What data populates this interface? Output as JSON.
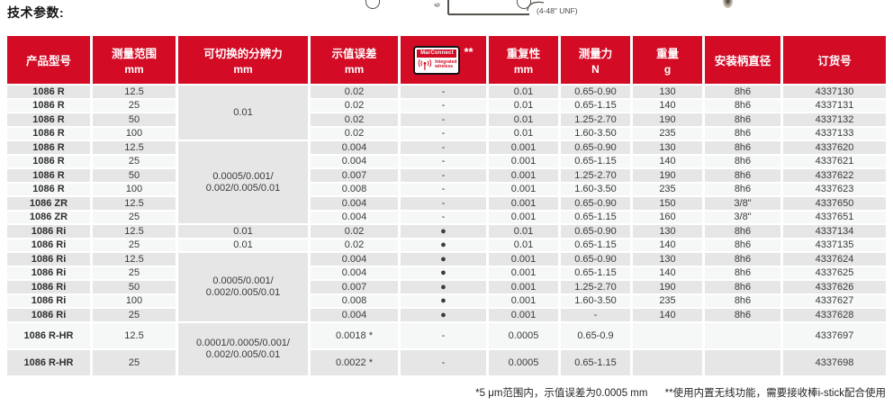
{
  "page": {
    "title": "技术参数:",
    "note1": "*5 μm范围内，示值误差为0.0005 mm",
    "note2": "**使用内置无线功能，需要接收棒i-stick配合使用"
  },
  "drawings": {
    "dim_label": "6",
    "unf_label": "(4-48\" UNF)"
  },
  "colors": {
    "brand_red": "#d30b25",
    "row_gray": "#e6e6e6",
    "row_light": "#f6f7f7"
  },
  "table": {
    "marconnect": {
      "title": "MarConnect",
      "icon": "wireless-antenna-icon",
      "line1": "Integrated",
      "line2": "wireless",
      "stars": "**"
    },
    "headers": [
      {
        "key": "product-model",
        "label": "产品型号",
        "unit": ""
      },
      {
        "key": "measuring-range",
        "label": "测量范围",
        "unit": "mm"
      },
      {
        "key": "switchable-resolution",
        "label": "可切换的分辨力",
        "unit": "mm"
      },
      {
        "key": "indication-error",
        "label": "示值误差",
        "unit": "mm"
      },
      {
        "key": "marconnect",
        "label": "",
        "unit": "",
        "icon": "marconnect"
      },
      {
        "key": "repeatability",
        "label": "重复性",
        "unit": "mm"
      },
      {
        "key": "measuring-force",
        "label": "测量力",
        "unit": "N"
      },
      {
        "key": "weight",
        "label": "重量",
        "unit": "g"
      },
      {
        "key": "shank-diameter",
        "label": "安装柄直径",
        "unit": ""
      },
      {
        "key": "order-number",
        "label": "订货号",
        "unit": ""
      }
    ],
    "rows": [
      {
        "cells": [
          "1086 R",
          "12.5",
          {
            "v": "0.01",
            "rowspan": 4,
            "merged": true
          },
          "0.02",
          "-",
          "0.01",
          "0.65-0.90",
          "130",
          "8h6",
          "4337130"
        ]
      },
      {
        "cells": [
          "1086 R",
          "25",
          "0.02",
          "-",
          "0.01",
          "0.65-1.15",
          "140",
          "8h6",
          "4337131"
        ]
      },
      {
        "cells": [
          "1086 R",
          "50",
          "0.02",
          "-",
          "0.01",
          "1.25-2.70",
          "190",
          "8h6",
          "4337132"
        ]
      },
      {
        "cells": [
          "1086 R",
          "100",
          "0.02",
          "-",
          "0.01",
          "1.60-3.50",
          "235",
          "8h6",
          "4337133"
        ]
      },
      {
        "cells": [
          "1086 R",
          "12.5",
          {
            "v": "0.0005/0.001/\n0.002/0.005/0.01",
            "rowspan": 6,
            "merged": true
          },
          "0.004",
          "-",
          "0.001",
          "0.65-0.90",
          "130",
          "8h6",
          "4337620"
        ]
      },
      {
        "cells": [
          "1086 R",
          "25",
          "0.004",
          "-",
          "0.001",
          "0.65-1.15",
          "140",
          "8h6",
          "4337621"
        ]
      },
      {
        "cells": [
          "1086 R",
          "50",
          "0.007",
          "-",
          "0.001",
          "1.25-2.70",
          "190",
          "8h6",
          "4337622"
        ]
      },
      {
        "cells": [
          "1086 R",
          "100",
          "0.008",
          "-",
          "0.001",
          "1.60-3.50",
          "235",
          "8h6",
          "4337623"
        ]
      },
      {
        "cells": [
          "1086 ZR",
          "12.5",
          "0.004",
          "-",
          "0.001",
          "0.65-0.90",
          "150",
          "3/8\"",
          "4337650"
        ]
      },
      {
        "cells": [
          "1086 ZR",
          "25",
          "0.004",
          "-",
          "0.001",
          "0.65-1.15",
          "160",
          "3/8\"",
          "4337651"
        ]
      },
      {
        "cells": [
          "1086 Ri",
          "12.5",
          "0.01",
          "0.02",
          "●",
          "0.01",
          "0.65-0.90",
          "130",
          "8h6",
          "4337134"
        ]
      },
      {
        "cells": [
          "1086 Ri",
          "25",
          "0.01",
          "0.02",
          "●",
          "0.01",
          "0.65-1.15",
          "140",
          "8h6",
          "4337135"
        ]
      },
      {
        "cells": [
          "1086 Ri",
          "12.5",
          {
            "v": "0.0005/0.001/\n0.002/0.005/0.01",
            "rowspan": 5,
            "merged": true
          },
          "0.004",
          "●",
          "0.001",
          "0.65-0.90",
          "130",
          "8h6",
          "4337624"
        ]
      },
      {
        "cells": [
          "1086 Ri",
          "25",
          "0.004",
          "●",
          "0.001",
          "0.65-1.15",
          "140",
          "8h6",
          "4337625"
        ]
      },
      {
        "cells": [
          "1086 Ri",
          "50",
          "0.007",
          "●",
          "0.001",
          "1.25-2.70",
          "190",
          "8h6",
          "4337626"
        ]
      },
      {
        "cells": [
          "1086 Ri",
          "100",
          "0.008",
          "●",
          "0.001",
          "1.60-3.50",
          "235",
          "8h6",
          "4337627"
        ]
      },
      {
        "cells": [
          "1086 Ri",
          "25",
          "0.004",
          "●",
          "0.001",
          "-",
          "140",
          "8h6",
          "4337628"
        ]
      },
      {
        "tall": true,
        "cells": [
          "1086 R-HR",
          "12.5",
          {
            "v": "0.0001/0.0005/0.001/\n0.002/0.005/0.01",
            "rowspan": 2,
            "merged": true
          },
          "0.0018 *",
          "-",
          "0.0005",
          "0.65-0.9",
          "",
          "",
          "4337697"
        ]
      },
      {
        "tall": true,
        "cells": [
          "1086 R-HR",
          "25",
          "0.0022 *",
          "-",
          "0.0005",
          "0.65-1.15",
          "",
          "",
          "4337698"
        ]
      }
    ]
  }
}
